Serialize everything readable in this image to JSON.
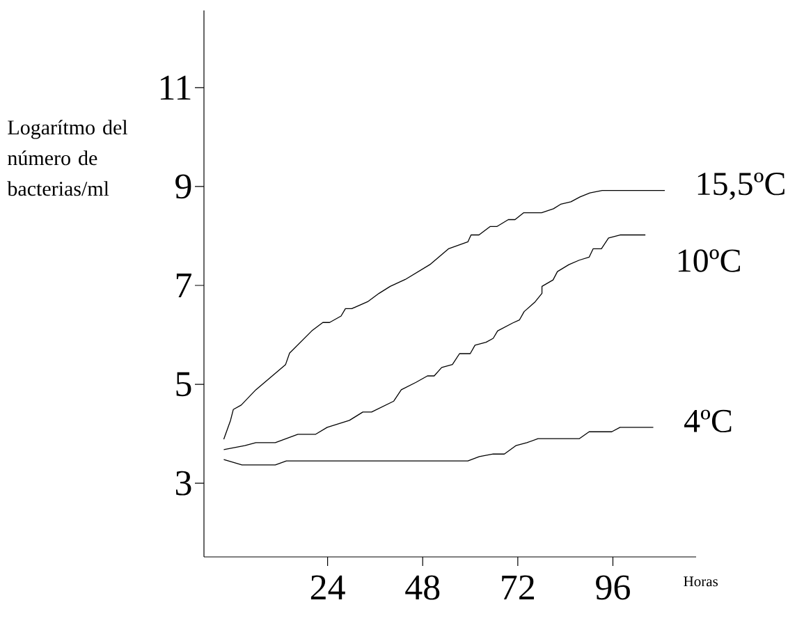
{
  "chart_data": {
    "type": "line",
    "xlabel": "Horas",
    "ylabel": "Logarítmo del número de bacterias/ml",
    "xlim": [
      -7.2,
      117
    ],
    "ylim": [
      1.51,
      12.56
    ],
    "xticks": [
      24,
      48,
      72,
      96
    ],
    "yticks": [
      3,
      5,
      7,
      9,
      11
    ],
    "grid": false,
    "legend": false,
    "marker": "none",
    "line_style": "solid",
    "series": [
      {
        "name": "15,5ºC",
        "color": "#000000",
        "x": [
          -2.2,
          -0.5,
          0.2,
          2.2,
          5.9,
          13.4,
          14.4,
          20.0,
          22.8,
          24.5,
          27.4,
          28.5,
          30.1,
          34.1,
          37.0,
          39.8,
          43.6,
          49.8,
          54.5,
          59.4,
          60.2,
          62.2,
          65.0,
          66.7,
          69.6,
          71.3,
          73.5,
          78.0,
          81.0,
          82.8,
          85.4,
          87.7,
          90.2,
          93.3,
          109.1
        ],
        "values": [
          3.89,
          4.27,
          4.49,
          4.58,
          4.89,
          5.4,
          5.63,
          6.08,
          6.25,
          6.25,
          6.38,
          6.53,
          6.53,
          6.67,
          6.84,
          6.98,
          7.12,
          7.42,
          7.74,
          7.88,
          8.02,
          8.02,
          8.19,
          8.19,
          8.33,
          8.33,
          8.47,
          8.47,
          8.55,
          8.64,
          8.69,
          8.79,
          8.87,
          8.92,
          8.92
        ]
      },
      {
        "name": "10ºC",
        "color": "#000000",
        "x": [
          -2.2,
          3.1,
          5.9,
          10.8,
          16.5,
          21.0,
          23.9,
          29.5,
          32.9,
          35.1,
          40.7,
          42.6,
          46.3,
          49.2,
          50.9,
          52.8,
          55.5,
          57.3,
          60.0,
          61.2,
          64.0,
          65.8,
          66.9,
          70.7,
          72.4,
          73.6,
          76.4,
          78.1,
          78.1,
          80.9,
          82.0,
          84.9,
          87.5,
          90.0,
          91.0,
          93.1,
          94.9,
          97.8,
          104.2
        ],
        "values": [
          3.68,
          3.76,
          3.82,
          3.82,
          3.99,
          3.99,
          4.13,
          4.27,
          4.44,
          4.44,
          4.66,
          4.89,
          5.04,
          5.17,
          5.17,
          5.34,
          5.4,
          5.62,
          5.62,
          5.79,
          5.85,
          5.93,
          6.08,
          6.24,
          6.3,
          6.47,
          6.67,
          6.84,
          6.98,
          7.11,
          7.28,
          7.42,
          7.51,
          7.57,
          7.74,
          7.74,
          7.96,
          8.02,
          8.02
        ]
      },
      {
        "name": "4ºC",
        "color": "#000000",
        "x": [
          -2.2,
          2.4,
          10.8,
          13.6,
          59.4,
          62.3,
          65.8,
          68.6,
          71.5,
          74.3,
          77.1,
          87.5,
          90.0,
          95.7,
          97.8,
          106.2
        ],
        "values": [
          3.48,
          3.37,
          3.37,
          3.45,
          3.45,
          3.54,
          3.59,
          3.59,
          3.76,
          3.82,
          3.9,
          3.9,
          4.04,
          4.04,
          4.13,
          4.13
        ]
      }
    ]
  }
}
